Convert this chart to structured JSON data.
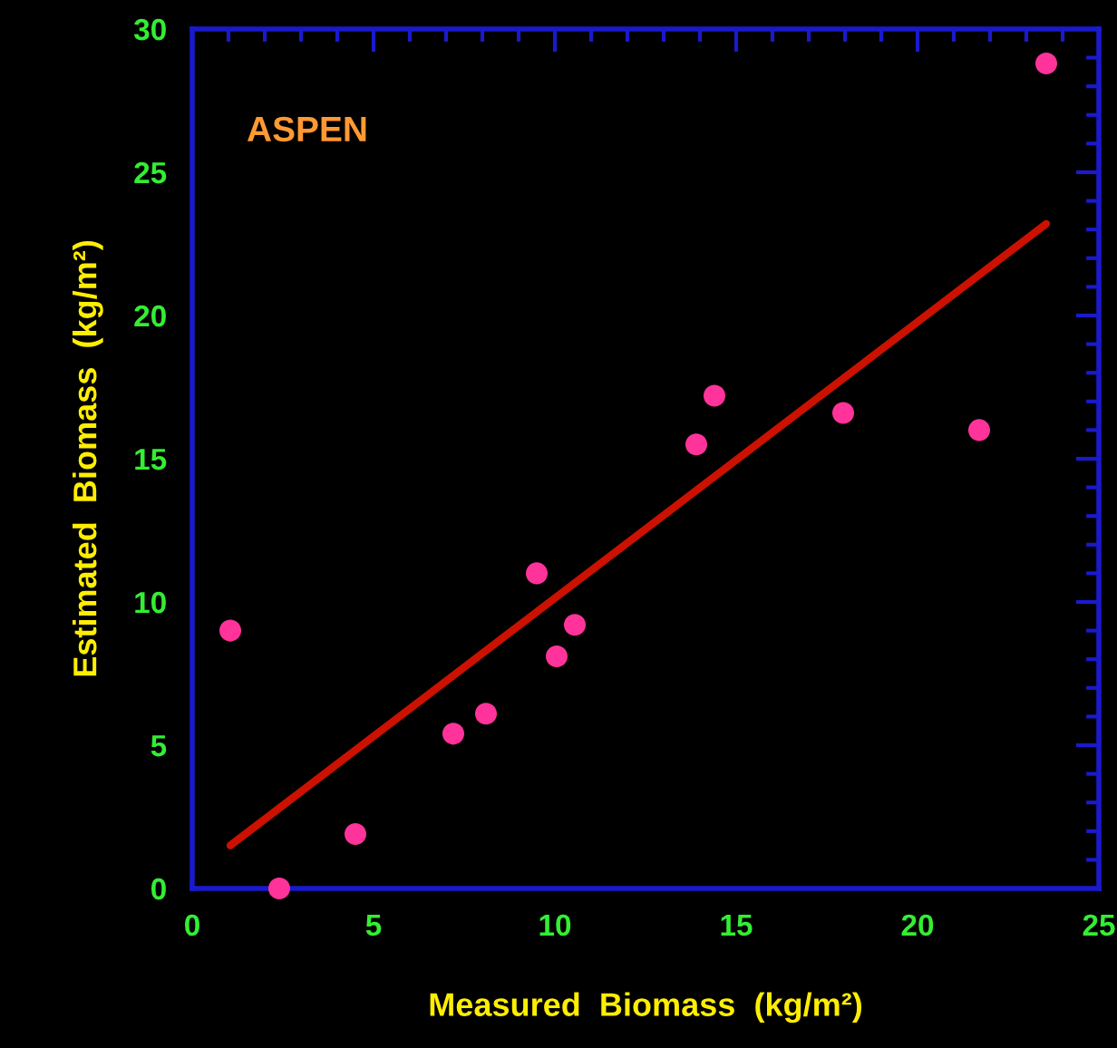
{
  "chart_data": {
    "type": "scatter",
    "xlabel": "Measured  Biomass  (kg/m²)",
    "ylabel": "Estimated  Biomass  (kg/m²)",
    "annotations": [
      "ASPEN"
    ],
    "xlim": [
      0,
      25
    ],
    "ylim": [
      0,
      30
    ],
    "xticks": [
      0,
      5,
      10,
      15,
      20,
      25
    ],
    "yticks": [
      0,
      5,
      10,
      15,
      20,
      25,
      30
    ],
    "grid": false,
    "legend": false,
    "series": [
      {
        "marker": "circle",
        "color": "#ff3399",
        "x": [
          1.05,
          2.4,
          4.5,
          7.2,
          8.1,
          9.5,
          10.05,
          10.55,
          13.9,
          14.4,
          17.95,
          21.7,
          23.55
        ],
        "values": [
          9.0,
          0.0,
          1.9,
          5.4,
          6.1,
          11.0,
          8.1,
          9.2,
          15.5,
          17.2,
          16.6,
          16.0,
          28.8
        ]
      },
      {
        "type": "line",
        "color": "#cc1100",
        "x": [
          1.05,
          23.55
        ],
        "values": [
          1.5,
          23.2
        ],
        "line_style": "solid"
      }
    ]
  }
}
